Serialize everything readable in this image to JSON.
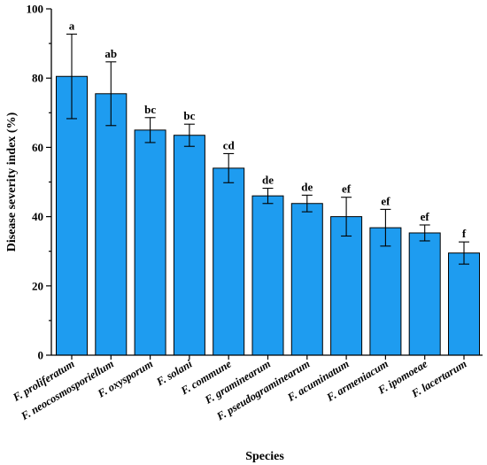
{
  "chart_data": {
    "type": "bar",
    "categories": [
      "F. proliferatum",
      "F. neocosmosporiellum",
      "F. oxysporum",
      "F. solani",
      "F. commune",
      "F. graminearum",
      "F. pseudograminearum",
      "F. acuminatum",
      "F. armeniacum",
      "F. ipomoeae",
      "F. lacertarum"
    ],
    "values": [
      80.5,
      75.5,
      65.0,
      63.5,
      54.0,
      46.0,
      43.8,
      40.0,
      36.8,
      35.3,
      29.5
    ],
    "errors": [
      12.2,
      9.2,
      3.6,
      3.2,
      4.2,
      2.2,
      2.4,
      5.6,
      5.3,
      2.3,
      3.2
    ],
    "significance": [
      "a",
      "ab",
      "bc",
      "bc",
      "cd",
      "de",
      "de",
      "ef",
      "ef",
      "ef",
      "f"
    ],
    "xlabel": "Species",
    "ylabel": "Disease severity index (%)",
    "ylim": [
      0,
      100
    ],
    "yticks": [
      "0",
      "20",
      "40",
      "60",
      "80",
      "100"
    ],
    "grid": false,
    "colors": {
      "bar": "#1e9cf0",
      "edge": "#000000"
    }
  }
}
